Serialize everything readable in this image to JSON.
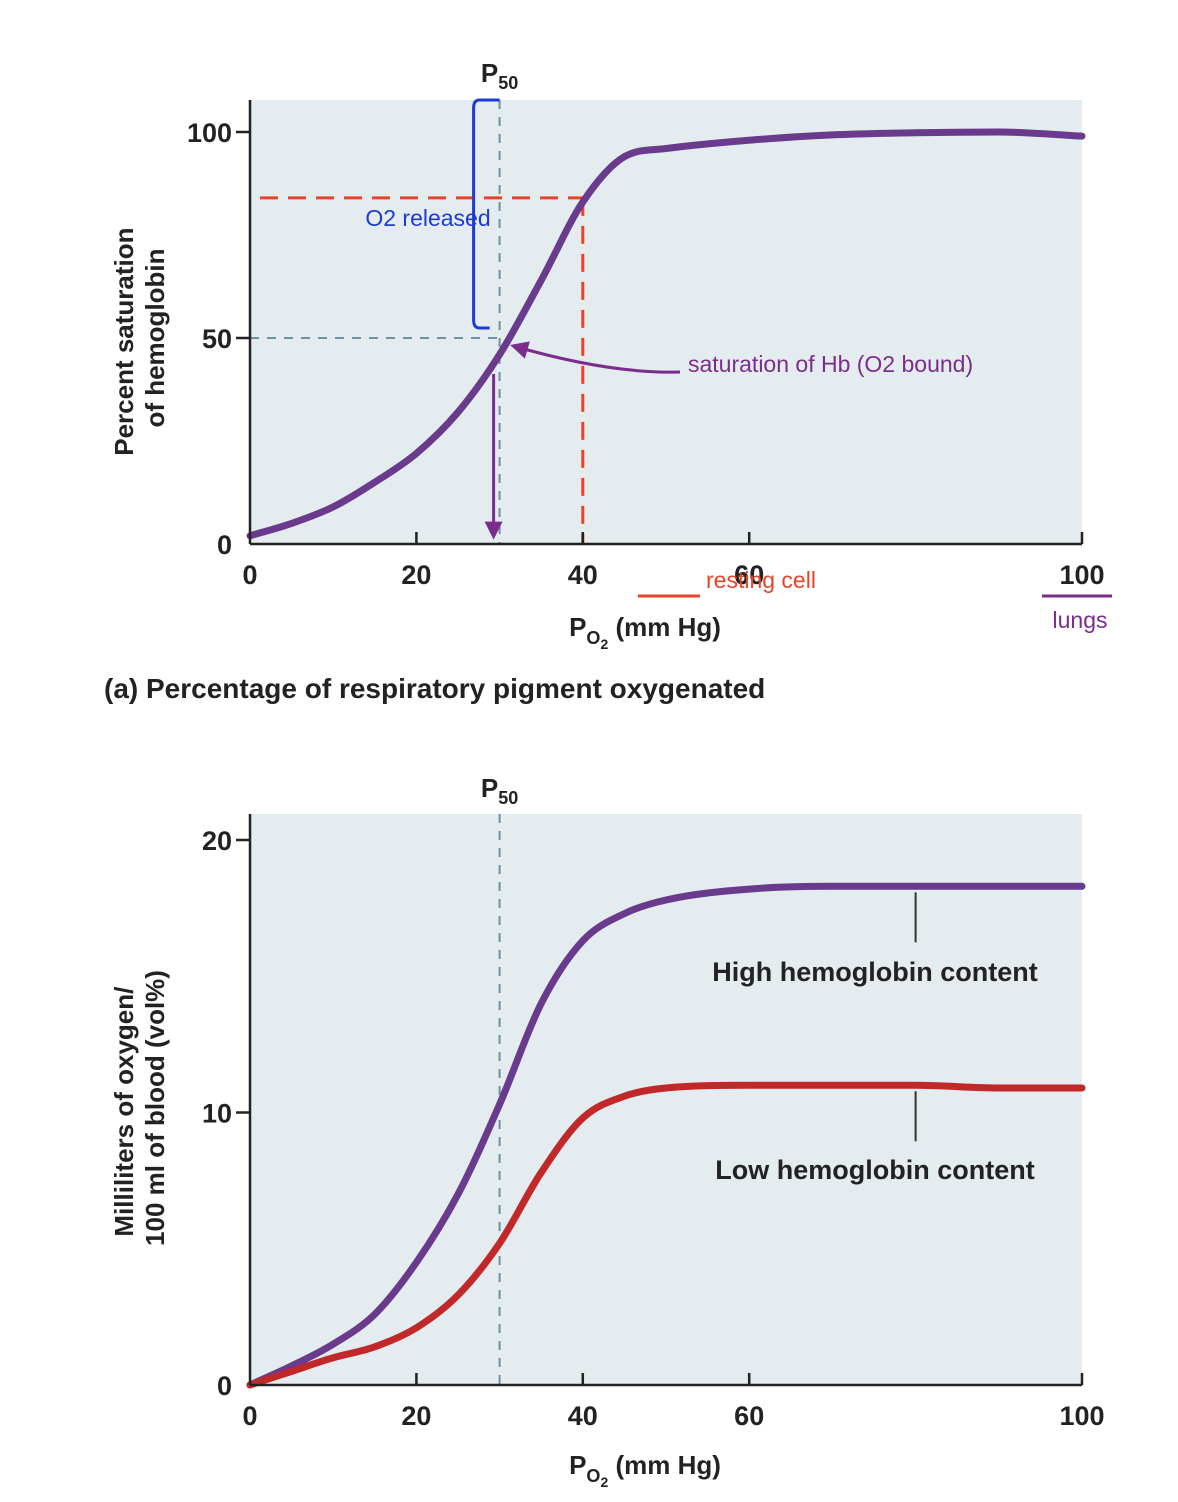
{
  "chart_data": [
    {
      "type": "line",
      "caption": "(a) Percentage of respiratory pigment oxygenated",
      "xlabel": "P",
      "xlabel_sub": "O",
      "xlabel_sub2": "2",
      "xlabel_unit": " (mm Hg)",
      "ylabel": [
        "Percent saturation",
        "of hemoglobin"
      ],
      "xlim": [
        0,
        100
      ],
      "ylim": [
        0,
        100
      ],
      "x_ticks": [
        0,
        20,
        40,
        60,
        100
      ],
      "y_ticks": [
        0,
        50,
        100
      ],
      "p50_label": "P",
      "p50_sub": "50",
      "p50_x": 30,
      "series": [
        {
          "x": [
            0,
            5,
            10,
            15,
            20,
            25,
            30,
            35,
            40,
            45,
            50,
            60,
            70,
            80,
            90,
            100
          ],
          "y": [
            2,
            5,
            9,
            15,
            22,
            32,
            46,
            64,
            83,
            94,
            96,
            98,
            99.3,
            99.8,
            100,
            99
          ]
        }
      ],
      "annotations": {
        "o2_released": "O2 released",
        "saturation": "saturation of Hb (O2 bound)",
        "resting_cell": "resting cell",
        "lungs": "lungs",
        "resting_x": 40,
        "resting_y": 84,
        "p50_y": 50
      },
      "colors": {
        "curve": "#6a3a8c",
        "red_dash": "#e8442a",
        "blue_dash": "#6e92a0",
        "bracket": "#1f3bd6",
        "annotation_purple": "#7b2d8e",
        "plot_bg": "#e4ecef"
      }
    },
    {
      "type": "line",
      "xlabel": "P",
      "xlabel_sub": "O",
      "xlabel_sub2": "2",
      "xlabel_unit": " (mm Hg)",
      "ylabel": [
        "Milliliters of oxygen/",
        "100 ml of blood (vol%)"
      ],
      "xlim": [
        0,
        100
      ],
      "ylim": [
        0,
        20
      ],
      "x_ticks": [
        0,
        20,
        40,
        60,
        100
      ],
      "y_ticks": [
        0,
        10,
        20
      ],
      "p50_label": "P",
      "p50_sub": "50",
      "p50_x": 30,
      "series": [
        {
          "name": "High hemoglobin content",
          "color": "#6a3a8c",
          "x": [
            0,
            5,
            10,
            15,
            20,
            25,
            30,
            35,
            40,
            45,
            50,
            60,
            70,
            80,
            90,
            100
          ],
          "y": [
            0,
            0.7,
            1.5,
            2.6,
            4.5,
            7,
            10.3,
            14,
            16.3,
            17.3,
            17.8,
            18.2,
            18.3,
            18.3,
            18.3,
            18.3
          ]
        },
        {
          "name": "Low hemoglobin content",
          "color": "#c0282a",
          "x": [
            0,
            5,
            10,
            15,
            20,
            25,
            30,
            35,
            40,
            45,
            50,
            60,
            70,
            80,
            90,
            100
          ],
          "y": [
            0,
            0.5,
            1,
            1.4,
            2.1,
            3.3,
            5.2,
            7.8,
            9.8,
            10.6,
            10.9,
            11,
            11,
            11,
            10.9,
            10.9
          ]
        }
      ],
      "colors": {
        "blue_dash": "#6e92a0",
        "plot_bg": "#e4ecef"
      }
    }
  ]
}
